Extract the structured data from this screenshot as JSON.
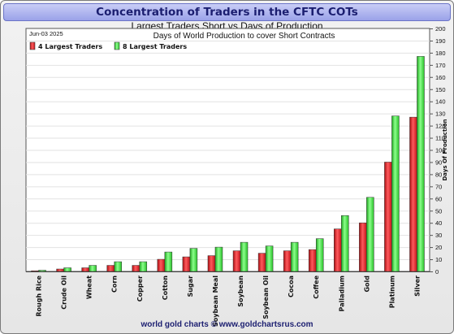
{
  "header": {
    "title": "Concentration of Traders in the CFTC COTs",
    "subtitle1": "Largest Traders Short vs Days of Production",
    "subtitle2": "Days of World Production to cover Short Contracts",
    "date": "Jun-03  2025"
  },
  "footer": {
    "text": "world gold charts © www.goldchartsrus.com"
  },
  "chart_data": {
    "type": "bar",
    "title": "Concentration of Traders in the CFTC COTs",
    "ylabel": "Days Of Production",
    "ylim": [
      0,
      200
    ],
    "ytick_step": 10,
    "grid": true,
    "legend_position": "top-left",
    "categories": [
      "Rough Rice",
      "Crude Oil",
      "Wheat",
      "Corn",
      "Copper",
      "Cotton",
      "Sugar",
      "Soybean Meal",
      "Soybean",
      "Soybean Oil",
      "Cocoa",
      "Coffee",
      "Palladium",
      "Gold",
      "Platinum",
      "Silver"
    ],
    "series": [
      {
        "name": "4 Largest Traders",
        "color": "#e8262b",
        "values": [
          0.5,
          2,
          3,
          5,
          5,
          10,
          12,
          13,
          17,
          15,
          17,
          18,
          35,
          40,
          90,
          127
        ]
      },
      {
        "name": "8 Largest Traders",
        "color": "#39e639",
        "values": [
          1,
          3,
          5,
          8,
          8,
          16,
          19,
          20,
          24,
          21,
          24,
          27,
          46,
          61,
          128,
          177
        ]
      }
    ]
  }
}
